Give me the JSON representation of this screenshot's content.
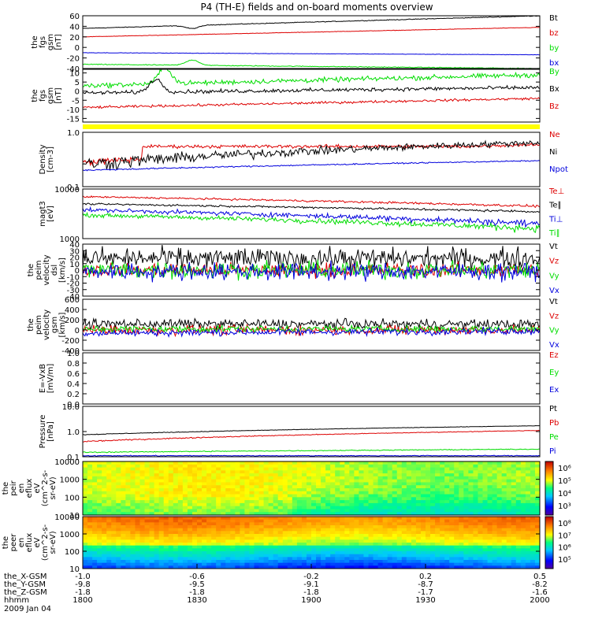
{
  "title": "P4 (TH-E) fields and on-board moments overview",
  "date": "2009 Jan 04",
  "colors": {
    "black": "#000000",
    "red": "#dd0000",
    "green": "#00dd00",
    "blue": "#0000dd",
    "yellow": "#ffff00"
  },
  "chart_data": [
    {
      "id": "p1",
      "type": "line",
      "ylabel": [
        "the",
        "fgs",
        "gsm",
        "[nT]"
      ],
      "ylim": [
        -40,
        60
      ],
      "yticks": [
        "60",
        "40",
        "20",
        "0",
        "-20",
        "-40"
      ],
      "series": [
        {
          "name": "Bt",
          "color": "black",
          "start": 36,
          "end": 60,
          "noise": 0.5,
          "dip": [
            [
              0.24,
              30
            ]
          ]
        },
        {
          "name": "bz",
          "color": "red",
          "start": 20,
          "end": 38,
          "noise": 0.3
        },
        {
          "name": "by",
          "color": "green",
          "start": -32,
          "end": -40,
          "noise": 0.6,
          "bump": [
            [
              0.24,
              -22
            ]
          ]
        },
        {
          "name": "bx",
          "color": "blue",
          "start": -10,
          "end": -14,
          "noise": 0.3
        }
      ]
    },
    {
      "id": "p2",
      "type": "line",
      "ylabel": [
        "the",
        "fgs",
        "gsm",
        "[nT]"
      ],
      "ylim": [
        -17,
        12
      ],
      "yticks": [
        "10",
        "5",
        "0",
        "-5",
        "-10",
        "-15"
      ],
      "series": [
        {
          "name": "By",
          "color": "green",
          "start": 3,
          "end": 9,
          "noise": 1.0,
          "bump": [
            [
              0.18,
              12
            ]
          ]
        },
        {
          "name": "Bx",
          "color": "black",
          "start": -1,
          "end": 2,
          "noise": 0.8,
          "bump": [
            [
              0.16,
              6
            ]
          ]
        },
        {
          "name": "Bz",
          "color": "red",
          "start": -9,
          "end": -4,
          "noise": 0.5
        }
      ]
    },
    {
      "id": "p3",
      "type": "line",
      "ylabel": [
        "Density",
        "[cm-3]"
      ],
      "yscale": "log",
      "ylim": [
        0.1,
        1.0
      ],
      "yticks": [
        "1.0",
        "0.1"
      ],
      "series": [
        {
          "name": "Ne",
          "color": "red",
          "start": 0.28,
          "end": 0.6,
          "noise": 0.03,
          "step": [
            0.13,
            0.55
          ]
        },
        {
          "name": "Ni",
          "color": "black",
          "start": 0.26,
          "end": 0.65,
          "noise": 0.06
        },
        {
          "name": "Npot",
          "color": "blue",
          "start": 0.2,
          "end": 0.3,
          "noise": 0.005
        }
      ]
    },
    {
      "id": "p4",
      "type": "line",
      "ylabel": [
        "magt3",
        "[eV]"
      ],
      "yscale": "log",
      "ylim": [
        1000,
        10000
      ],
      "yticks": [
        "10000",
        "1000"
      ],
      "series": [
        {
          "name": "Te⊥",
          "color": "red",
          "start": 7000,
          "end": 4500,
          "noise": 200
        },
        {
          "name": "Te∥",
          "color": "black",
          "start": 5000,
          "end": 3500,
          "noise": 150
        },
        {
          "name": "Ti⊥",
          "color": "blue",
          "start": 3800,
          "end": 2000,
          "noise": 250
        },
        {
          "name": "Ti∥",
          "color": "green",
          "start": 3000,
          "end": 1600,
          "noise": 200
        }
      ]
    },
    {
      "id": "p5",
      "type": "line",
      "ylabel": [
        "the",
        "peim",
        "velocity",
        "dsl",
        "[km/s]"
      ],
      "ylim": [
        -40,
        40
      ],
      "yticks": [
        "40",
        "30",
        "20",
        "10",
        "0",
        "-10",
        "-20",
        "-30",
        "-40"
      ],
      "series": [
        {
          "name": "Vt",
          "color": "black",
          "start": 18,
          "end": 18,
          "noise": 12
        },
        {
          "name": "Vz",
          "color": "red",
          "start": 0,
          "end": 0,
          "noise": 8
        },
        {
          "name": "Vy",
          "color": "green",
          "start": 0,
          "end": 0,
          "noise": 10
        },
        {
          "name": "Vx",
          "color": "blue",
          "start": -2,
          "end": -2,
          "noise": 10
        }
      ]
    },
    {
      "id": "p6",
      "type": "line",
      "ylabel": [
        "the",
        "peim",
        "velocity",
        "gsm",
        "[km/s]"
      ],
      "ylim": [
        -400,
        600
      ],
      "yticks": [
        "600",
        "400",
        "200",
        "0",
        "-200",
        "-400"
      ],
      "series": [
        {
          "name": "Vt",
          "color": "black",
          "start": 120,
          "end": 110,
          "noise": 70
        },
        {
          "name": "Vz",
          "color": "red",
          "start": 0,
          "end": 0,
          "noise": 70
        },
        {
          "name": "Vy",
          "color": "green",
          "start": 20,
          "end": 20,
          "noise": 50
        },
        {
          "name": "Vx",
          "color": "blue",
          "start": -60,
          "end": -20,
          "noise": 50
        }
      ]
    },
    {
      "id": "p7",
      "type": "line",
      "ylabel": [
        "E=-VxB",
        "[mV/m]"
      ],
      "ylim": [
        0.0,
        1.0
      ],
      "yticks": [
        "1.0",
        "0.8",
        "0.6",
        "0.4",
        "0.2",
        "0.0"
      ],
      "series": [
        {
          "name": "Ez",
          "color": "red",
          "values": []
        },
        {
          "name": "Ey",
          "color": "green",
          "values": []
        },
        {
          "name": "Ex",
          "color": "blue",
          "values": []
        }
      ]
    },
    {
      "id": "p8",
      "type": "line",
      "ylabel": [
        "Pressure",
        "[nPa]"
      ],
      "yscale": "log",
      "ylim": [
        0.1,
        10.0
      ],
      "yticks": [
        "10.0",
        "1.0",
        "0.1"
      ],
      "series": [
        {
          "name": "Pt",
          "color": "black",
          "start": 0.75,
          "end": 1.7,
          "noise": 0.02
        },
        {
          "name": "Pb",
          "color": "red",
          "start": 0.4,
          "end": 1.1,
          "noise": 0.02
        },
        {
          "name": "Pe",
          "color": "green",
          "start": 0.15,
          "end": 0.2,
          "noise": 0.005
        },
        {
          "name": "Pi",
          "color": "blue",
          "start": 0.11,
          "end": 0.11,
          "noise": 0.003
        }
      ]
    },
    {
      "id": "s1",
      "type": "heatmap",
      "ylabel": [
        "the",
        "peir",
        "en",
        "eflux",
        "eV",
        "(cm^2-s-",
        "sr-eV)"
      ],
      "yscale": "log",
      "ylim": [
        10,
        10000
      ],
      "yticks": [
        "10000",
        "1000",
        "100",
        "10"
      ],
      "colorbar": {
        "labels": [
          "10⁶",
          "10⁵",
          "10⁴",
          "10³"
        ],
        "range": [
          1000,
          1000000
        ]
      }
    },
    {
      "id": "s2",
      "type": "heatmap",
      "ylabel": [
        "the",
        "peer",
        "en",
        "eflux",
        "eV",
        "(cm^2-s-",
        "sr-eV)"
      ],
      "yscale": "log",
      "ylim": [
        10,
        10000
      ],
      "yticks": [
        "10000",
        "1000",
        "100",
        "10"
      ],
      "colorbar": {
        "labels": [
          "10⁸",
          "10⁷",
          "10⁶",
          "10⁵"
        ],
        "range": [
          100000,
          100000000
        ]
      }
    }
  ],
  "legends": {
    "p1": [
      "Bt",
      "bz",
      "by",
      "bx"
    ],
    "p2": [
      "By",
      "Bx",
      "Bz"
    ],
    "p3": [
      "Ne",
      "Ni",
      "Npot"
    ],
    "p4": [
      "Te⊥",
      "Te∥",
      "Ti⊥",
      "Ti∥"
    ],
    "p5": [
      "Vt",
      "Vz",
      "Vy",
      "Vx"
    ],
    "p6": [
      "Vt",
      "Vz",
      "Vy",
      "Vx"
    ],
    "p7": [
      "Ez",
      "Ey",
      "Ex"
    ],
    "p8": [
      "Pt",
      "Pb",
      "Pe",
      "Pi"
    ]
  },
  "xaxis": {
    "rows": [
      {
        "label": "the_X-GSM",
        "values": [
          "-1.0",
          "-0.6",
          "-0.2",
          "0.2",
          "0.5"
        ]
      },
      {
        "label": "the_Y-GSM",
        "values": [
          "-9.8",
          "-9.5",
          "-9.1",
          "-8.7",
          "-8.2"
        ]
      },
      {
        "label": "the_Z-GSM",
        "values": [
          "-1.8",
          "-1.8",
          "-1.8",
          "-1.7",
          "-1.6"
        ]
      },
      {
        "label": "hhmm",
        "values": [
          "1800",
          "1830",
          "1900",
          "1930",
          "2000"
        ]
      }
    ]
  }
}
